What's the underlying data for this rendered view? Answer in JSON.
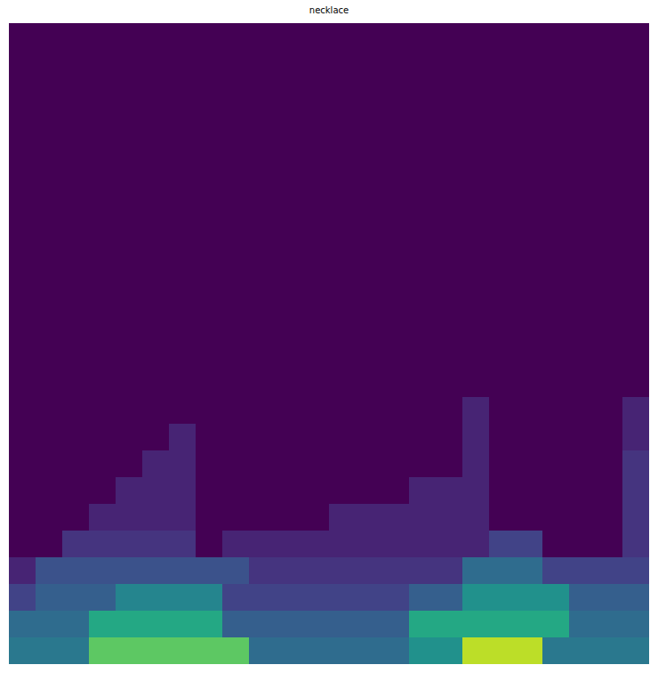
{
  "chart_data": {
    "type": "heatmap",
    "title": "necklace",
    "color": "Viridis",
    "tick_labels": false,
    "zlim": [
      0,
      1
    ],
    "z": [
      [
        0,
        0,
        0,
        0,
        0,
        0,
        0,
        0,
        0,
        0,
        0,
        0,
        0,
        0,
        0,
        0,
        0,
        0,
        0,
        0,
        0,
        0,
        0,
        0
      ],
      [
        0,
        0,
        0,
        0,
        0,
        0,
        0,
        0,
        0,
        0,
        0,
        0,
        0,
        0,
        0,
        0,
        0,
        0,
        0,
        0,
        0,
        0,
        0,
        0
      ],
      [
        0,
        0,
        0,
        0,
        0,
        0,
        0,
        0,
        0,
        0,
        0,
        0,
        0,
        0,
        0,
        0,
        0,
        0,
        0,
        0,
        0,
        0,
        0,
        0
      ],
      [
        0,
        0,
        0,
        0,
        0,
        0,
        0,
        0,
        0,
        0,
        0,
        0,
        0,
        0,
        0,
        0,
        0,
        0,
        0,
        0,
        0,
        0,
        0,
        0
      ],
      [
        0,
        0,
        0,
        0,
        0,
        0,
        0,
        0,
        0,
        0,
        0,
        0,
        0,
        0,
        0,
        0,
        0,
        0,
        0,
        0,
        0,
        0,
        0,
        0
      ],
      [
        0,
        0,
        0,
        0,
        0,
        0,
        0,
        0,
        0,
        0,
        0,
        0,
        0,
        0,
        0,
        0,
        0,
        0,
        0,
        0,
        0,
        0,
        0,
        0
      ],
      [
        0,
        0,
        0,
        0,
        0,
        0,
        0,
        0,
        0,
        0,
        0,
        0,
        0,
        0,
        0,
        0,
        0,
        0,
        0,
        0,
        0,
        0,
        0,
        0
      ],
      [
        0,
        0,
        0,
        0,
        0,
        0,
        0,
        0,
        0,
        0,
        0,
        0,
        0,
        0,
        0,
        0,
        0,
        0,
        0,
        0,
        0,
        0,
        0,
        0
      ],
      [
        0,
        0,
        0,
        0,
        0,
        0,
        0,
        0,
        0,
        0,
        0,
        0,
        0,
        0,
        0,
        0,
        0,
        0,
        0,
        0,
        0,
        0,
        0,
        0
      ],
      [
        0,
        0,
        0,
        0,
        0,
        0,
        0,
        0,
        0,
        0,
        0,
        0,
        0,
        0,
        0,
        0,
        0,
        0,
        0,
        0,
        0,
        0,
        0,
        0
      ],
      [
        0,
        0,
        0,
        0,
        0,
        0,
        0,
        0,
        0,
        0,
        0,
        0,
        0,
        0,
        0,
        0,
        0,
        0,
        0,
        0,
        0,
        0,
        0,
        0
      ],
      [
        0,
        0,
        0,
        0,
        0,
        0,
        0,
        0,
        0,
        0,
        0,
        0,
        0,
        0,
        0,
        0,
        0,
        0,
        0,
        0,
        0,
        0,
        0,
        0
      ],
      [
        0,
        0,
        0,
        0,
        0,
        0,
        0,
        0,
        0,
        0,
        0,
        0,
        0,
        0,
        0,
        0,
        0,
        0,
        0,
        0,
        0,
        0,
        0,
        0
      ],
      [
        0,
        0,
        0,
        0,
        0,
        0,
        0,
        0,
        0,
        0,
        0,
        0,
        0,
        0,
        0,
        0,
        0,
        0,
        0,
        0,
        0,
        0,
        0,
        0
      ],
      [
        0,
        0,
        0,
        0,
        0,
        0,
        0,
        0,
        0,
        0,
        0,
        0,
        0,
        0,
        0,
        0,
        0,
        0.1,
        0,
        0,
        0,
        0,
        0,
        0.1
      ],
      [
        0,
        0,
        0,
        0,
        0,
        0,
        0.1,
        0,
        0,
        0,
        0,
        0,
        0,
        0,
        0,
        0,
        0,
        0.1,
        0,
        0,
        0,
        0,
        0,
        0.1
      ],
      [
        0,
        0,
        0,
        0,
        0,
        0.1,
        0.1,
        0,
        0,
        0,
        0,
        0,
        0,
        0,
        0,
        0,
        0,
        0.1,
        0,
        0,
        0,
        0,
        0,
        0.15
      ],
      [
        0,
        0,
        0,
        0,
        0.1,
        0.1,
        0.1,
        0,
        0,
        0,
        0,
        0,
        0,
        0,
        0,
        0.1,
        0.1,
        0.1,
        0,
        0,
        0,
        0,
        0,
        0.15
      ],
      [
        0,
        0,
        0,
        0.1,
        0.1,
        0.1,
        0.1,
        0,
        0,
        0,
        0,
        0,
        0.1,
        0.1,
        0.1,
        0.1,
        0.1,
        0.1,
        0,
        0,
        0,
        0,
        0,
        0.15
      ],
      [
        0,
        0,
        0.15,
        0.15,
        0.15,
        0.15,
        0.15,
        0,
        0.1,
        0.1,
        0.1,
        0.1,
        0.1,
        0.1,
        0.1,
        0.1,
        0.1,
        0.1,
        0.2,
        0.2,
        0,
        0,
        0,
        0.15
      ],
      [
        0.1,
        0.25,
        0.25,
        0.25,
        0.25,
        0.25,
        0.25,
        0.25,
        0.25,
        0.15,
        0.15,
        0.15,
        0.15,
        0.15,
        0.15,
        0.15,
        0.15,
        0.35,
        0.35,
        0.35,
        0.2,
        0.2,
        0.2,
        0.2
      ],
      [
        0.2,
        0.3,
        0.3,
        0.3,
        0.45,
        0.45,
        0.45,
        0.45,
        0.2,
        0.2,
        0.2,
        0.2,
        0.2,
        0.2,
        0.2,
        0.3,
        0.3,
        0.5,
        0.5,
        0.5,
        0.5,
        0.3,
        0.3,
        0.3
      ],
      [
        0.35,
        0.35,
        0.35,
        0.6,
        0.6,
        0.6,
        0.6,
        0.6,
        0.3,
        0.3,
        0.3,
        0.3,
        0.3,
        0.3,
        0.3,
        0.6,
        0.6,
        0.6,
        0.6,
        0.6,
        0.6,
        0.35,
        0.35,
        0.35
      ],
      [
        0.4,
        0.4,
        0.4,
        0.75,
        0.75,
        0.75,
        0.75,
        0.75,
        0.75,
        0.35,
        0.35,
        0.35,
        0.35,
        0.35,
        0.35,
        0.5,
        0.5,
        0.9,
        0.9,
        0.9,
        0.4,
        0.4,
        0.4,
        0.4
      ]
    ]
  }
}
